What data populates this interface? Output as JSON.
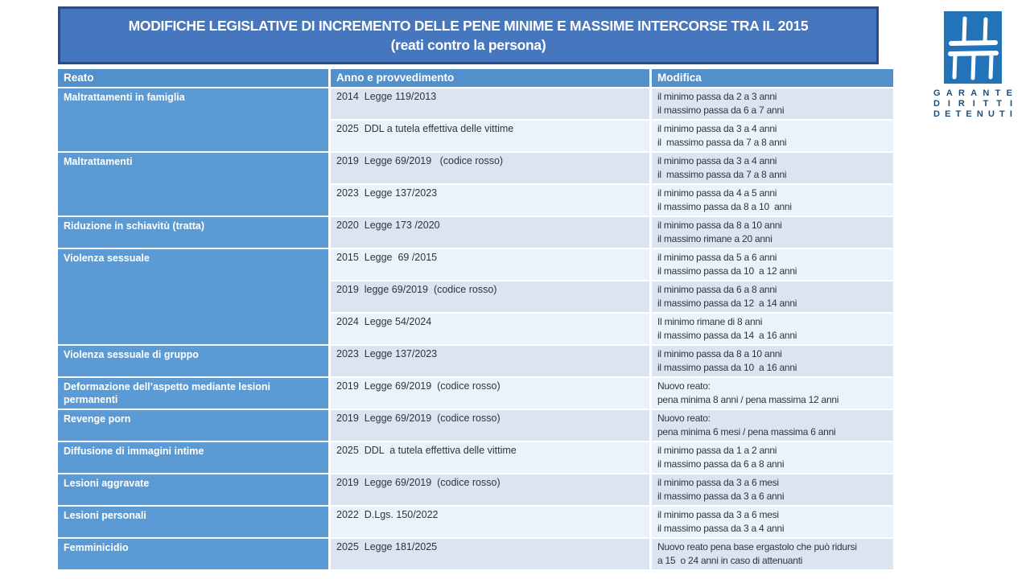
{
  "title": {
    "line1": "MODIFICHE LEGISLATIVE DI INCREMENTO DELLE PENE MINIME E MASSIME INTERCORSE TRA IL 2015",
    "line2": "(reati contro la persona)"
  },
  "logo": {
    "symbol": "prison-bars-icon",
    "lines": [
      "GARANTE",
      "DIRITTI",
      "DETENUTI"
    ]
  },
  "colors": {
    "banner_blue": "#4576be",
    "banner_border": "#2c4c84",
    "header_blue": "#5290cc",
    "row_label_blue": "#5b9bd5",
    "band_dark": "#dbe5f1",
    "band_light": "#ecf2f9",
    "text_dark": "#2b3442",
    "logo_blue": "#2373b9",
    "logo_text": "#1f4e79"
  },
  "table": {
    "headers": [
      "Reato",
      "Anno e provvedimento",
      "Modifica"
    ],
    "groups": [
      {
        "reato": "Maltrattamenti in famiglia",
        "rows": [
          {
            "anno": "2014  Legge 119/2013",
            "modifica": [
              "il minimo passa da 2 a 3 anni",
              "il massimo passa da 6 a 7 anni"
            ]
          },
          {
            "anno": "2025  DDL a tutela effettiva delle vittime",
            "modifica": [
              "il minimo passa da 3 a 4 anni",
              "il  massimo passa da 7 a 8 anni"
            ]
          }
        ]
      },
      {
        "reato": "Maltrattamenti",
        "rows": [
          {
            "anno": "2019  Legge 69/2019   (codice rosso)",
            "modifica": [
              "il minimo passa da 3 a 4 anni",
              "il  massimo passa da 7 a 8 anni"
            ]
          },
          {
            "anno": "2023  Legge 137/2023",
            "modifica": [
              "il minimo passa da 4 a 5 anni",
              "il massimo passa da 8 a 10  anni"
            ]
          }
        ]
      },
      {
        "reato": "Riduzione in schiavitù (tratta)",
        "rows": [
          {
            "anno": "2020  Legge 173 /2020",
            "modifica": [
              "il minimo passa da 8 a 10 anni",
              "il massimo rimane a 20 anni"
            ]
          }
        ]
      },
      {
        "reato": "Violenza sessuale",
        "rows": [
          {
            "anno": "2015  Legge  69 /2015",
            "modifica": [
              "il minimo passa da 5 a 6 anni",
              "il massimo passa da 10  a 12 anni"
            ]
          },
          {
            "anno": "2019  legge 69/2019  (codice rosso)",
            "modifica": [
              "il minimo passa da 6 a 8 anni",
              "il massimo passa da 12  a 14 anni"
            ]
          },
          {
            "anno": "2024  Legge 54/2024",
            "modifica": [
              "Il minimo rimane di 8 anni",
              "il massimo passa da 14  a 16 anni"
            ]
          }
        ]
      },
      {
        "reato": "Violenza sessuale di gruppo",
        "rows": [
          {
            "anno": "2023  Legge 137/2023",
            "modifica": [
              "il minimo passa da 8 a 10 anni",
              "il massimo passa da 10  a 16 anni"
            ]
          }
        ]
      },
      {
        "reato": "Deformazione dell’aspetto mediante lesioni permanenti",
        "rows": [
          {
            "anno": "2019  Legge 69/2019  (codice rosso)",
            "modifica": [
              "Nuovo reato:",
              "pena minima 8 anni / pena massima 12 anni"
            ]
          }
        ]
      },
      {
        "reato": "Revenge porn",
        "rows": [
          {
            "anno": "2019  Legge 69/2019  (codice rosso)",
            "modifica": [
              "Nuovo reato:",
              "pena minima 6 mesi / pena massima 6 anni"
            ]
          }
        ]
      },
      {
        "reato": "Diffusione di immagini intime",
        "rows": [
          {
            "anno": "2025  DDL  a tutela effettiva delle vittime",
            "modifica": [
              "il minimo passa da 1 a 2 anni",
              "il massimo passa da 6 a 8 anni"
            ]
          }
        ]
      },
      {
        "reato": "Lesioni aggravate",
        "rows": [
          {
            "anno": "2019  Legge 69/2019  (codice rosso)",
            "modifica": [
              "il minimo passa da 3 a 6 mesi",
              "il massimo passa da 3 a 6 anni"
            ]
          }
        ]
      },
      {
        "reato": "Lesioni personali",
        "rows": [
          {
            "anno": "2022  D.Lgs. 150/2022",
            "modifica": [
              "il minimo passa da 3 a 6 mesi",
              "il massimo passa da 3 a 4 anni"
            ]
          }
        ]
      },
      {
        "reato": "Femminicidio",
        "rows": [
          {
            "anno": "2025  Legge 181/2025",
            "modifica": [
              "Nuovo reato pena base ergastolo che può ridursi",
              "a 15  o 24 anni in caso di attenuanti"
            ]
          }
        ]
      }
    ]
  }
}
